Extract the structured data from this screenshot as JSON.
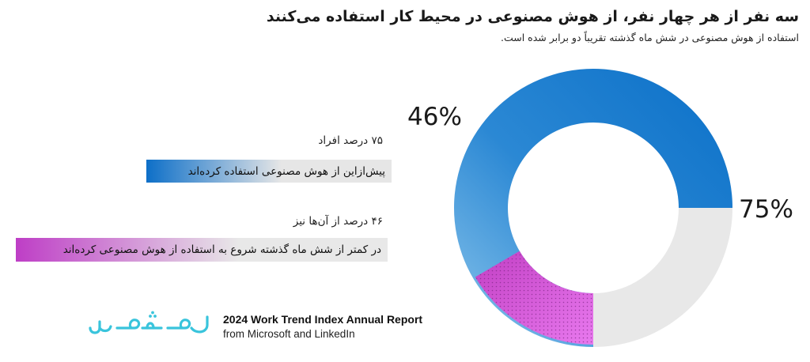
{
  "chart_data": {
    "type": "pie",
    "title": "سه نفر از هر چهار نفر، از هوش مصنوعی در محیط کار استفاده می‌کنند",
    "subtitle": "استفاده از هوش مصنوعی در شش ماه گذشته تقریباً دو برابر شده است.",
    "series": [
      {
        "values": [
          75,
          46
        ],
        "labels": [
          "75%",
          "46%"
        ],
        "colors": [
          "#0b70c8",
          "#c23fc4"
        ]
      }
    ],
    "annotations": [
      {
        "label": "۷۵ درصد افراد",
        "bar_text": "پیش‌ازاین از هوش مصنوعی استفاده کرده‌اند",
        "color": "#0b70c8"
      },
      {
        "label": "۴۶ درصد از آن‌ها نیز",
        "bar_text": "در کمتر از شش ماه گذشته شروع به استفاده از هوش مصنوعی کرده‌اند",
        "color": "#c23fc4"
      }
    ],
    "track_color": "#e8e8e8"
  },
  "source": {
    "title": "2024 Work Trend Index Annual Report",
    "subtitle": "from Microsoft and LinkedIn"
  },
  "colors": {
    "accent_blue": "#0b70c8",
    "accent_magenta": "#c23fc4",
    "logo_cyan": "#39c4dc"
  }
}
